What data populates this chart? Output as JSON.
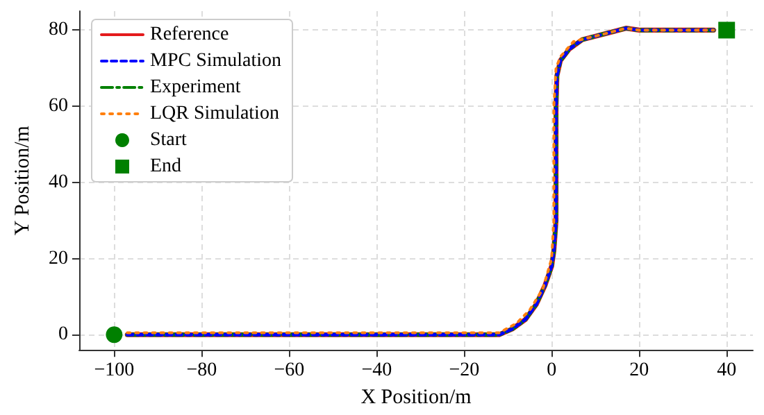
{
  "chart_data": {
    "type": "line",
    "xlabel": "X Position/m",
    "ylabel": "Y Position/m",
    "xlim": [
      -108,
      46
    ],
    "xticks": [
      -100,
      -80,
      -60,
      -40,
      -20,
      0,
      20,
      40
    ],
    "ylim": [
      -4,
      85
    ],
    "yticks": [
      0,
      20,
      40,
      60,
      80
    ],
    "grid": true,
    "legend": "top left",
    "series": [
      {
        "name": "Reference",
        "color": "#e41a1c",
        "line_style": "solid",
        "x": [
          -97,
          -12,
          -9,
          -6,
          -3.5,
          -1.5,
          0,
          0.5,
          1,
          1,
          1.2,
          2,
          4,
          7,
          12,
          17,
          20,
          37
        ],
        "values": [
          0,
          0,
          1.5,
          4,
          8,
          13,
          18,
          22,
          30,
          60,
          68,
          72,
          75,
          77.5,
          79,
          80.5,
          80,
          80
        ]
      },
      {
        "name": "MPC Simulation",
        "color": "#0000ff",
        "line_style": "dashed",
        "x": [
          -97,
          -12,
          -9,
          -6,
          -3.5,
          -1.5,
          0,
          0.5,
          1,
          1,
          1.2,
          2,
          4,
          7,
          12,
          17,
          20,
          37
        ],
        "values": [
          0,
          0,
          1.5,
          4,
          8,
          13,
          18,
          22,
          30,
          60,
          68,
          72,
          75,
          77.5,
          79,
          80.5,
          80,
          80
        ]
      },
      {
        "name": "Experiment",
        "color": "#008000",
        "line_style": "dashdot",
        "x": [
          -97,
          -12,
          -9,
          -6,
          -3.5,
          -1.5,
          0,
          0.5,
          1,
          1,
          1.2,
          2,
          4,
          7,
          12,
          17,
          20,
          37
        ],
        "values": [
          0,
          0,
          1.5,
          4,
          8,
          13,
          18,
          22,
          30,
          60,
          68,
          72,
          75,
          77.5,
          79,
          80.5,
          80,
          80
        ]
      },
      {
        "name": "LQR Simulation",
        "color": "#ff7f0e",
        "line_style": "dotted",
        "x": [
          -97,
          -12,
          -8,
          -5,
          -2,
          0,
          0.5,
          0.5,
          1,
          2,
          5,
          12,
          17,
          20,
          37
        ],
        "values": [
          0.5,
          0.5,
          3,
          6.5,
          12,
          20,
          30,
          60,
          70,
          73,
          77,
          79,
          80.5,
          80,
          80
        ]
      },
      {
        "name": "Start",
        "type": "scatter",
        "marker": "circle",
        "color": "#008000",
        "x": [
          -100
        ],
        "values": [
          0
        ]
      },
      {
        "name": "End",
        "type": "scatter",
        "marker": "square",
        "color": "#008000",
        "x": [
          40
        ],
        "values": [
          80
        ]
      }
    ]
  }
}
